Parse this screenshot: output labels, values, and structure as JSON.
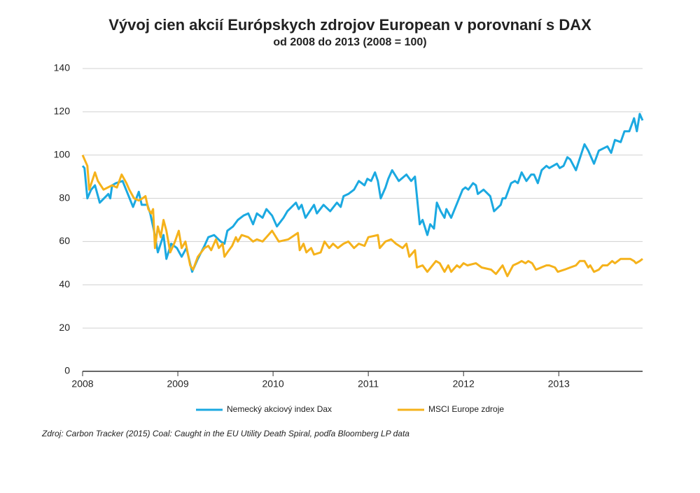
{
  "chart_data": {
    "type": "line",
    "title": "Vývoj cien akcií Európskych zdrojov European v porovnaní s DAX",
    "subtitle": "od 2008 do 2013 (2008 = 100)",
    "source": "Zdroj: Carbon Tracker (2015) Coal: Caught in the EU Utility Death Spiral, podľa Bloomberg LP data",
    "xlim": [
      2008,
      2013.88
    ],
    "xticks": [
      2008,
      2009,
      2010,
      2011,
      2012,
      2013
    ],
    "ylim": [
      0,
      140
    ],
    "yticks": [
      0,
      20,
      40,
      60,
      80,
      100,
      120,
      140
    ],
    "grid": true,
    "series": [
      {
        "name": "Nemecký akciový index Dax",
        "color": "#1ba9e1",
        "x": [
          2008.0,
          2008.02,
          2008.05,
          2008.09,
          2008.13,
          2008.18,
          2008.27,
          2008.29,
          2008.31,
          2008.35,
          2008.42,
          2008.53,
          2008.59,
          2008.62,
          2008.68,
          2008.71,
          2008.75,
          2008.79,
          2008.85,
          2008.88,
          2008.93,
          2008.99,
          2009.04,
          2009.09,
          2009.15,
          2009.21,
          2009.28,
          2009.32,
          2009.38,
          2009.45,
          2009.49,
          2009.52,
          2009.58,
          2009.63,
          2009.69,
          2009.74,
          2009.79,
          2009.83,
          2009.89,
          2009.93,
          2009.99,
          2010.04,
          2010.11,
          2010.15,
          2010.24,
          2010.27,
          2010.3,
          2010.34,
          2010.43,
          2010.46,
          2010.53,
          2010.6,
          2010.67,
          2010.71,
          2010.74,
          2010.79,
          2010.85,
          2010.9,
          2010.96,
          2010.99,
          2011.03,
          2011.07,
          2011.1,
          2011.13,
          2011.18,
          2011.21,
          2011.25,
          2011.32,
          2011.4,
          2011.45,
          2011.49,
          2011.54,
          2011.57,
          2011.62,
          2011.65,
          2011.69,
          2011.72,
          2011.76,
          2011.8,
          2011.82,
          2011.87,
          2011.99,
          2012.02,
          2012.05,
          2012.1,
          2012.13,
          2012.15,
          2012.21,
          2012.28,
          2012.32,
          2012.39,
          2012.41,
          2012.44,
          2012.5,
          2012.54,
          2012.57,
          2012.61,
          2012.66,
          2012.71,
          2012.74,
          2012.78,
          2012.82,
          2012.87,
          2012.9,
          2012.98,
          2013.01,
          2013.05,
          2013.09,
          2013.12,
          2013.18,
          2013.24,
          2013.27,
          2013.31,
          2013.37,
          2013.42,
          2013.51,
          2013.55,
          2013.59,
          2013.65,
          2013.69,
          2013.74,
          2013.79,
          2013.82,
          2013.85,
          2013.88
        ],
        "values": [
          95,
          94,
          80,
          84,
          86,
          78,
          82,
          80,
          86,
          87,
          88,
          76,
          83,
          77,
          77,
          73,
          65,
          55,
          63,
          52,
          59,
          57,
          53,
          57,
          46,
          52,
          58,
          62,
          63,
          60,
          59,
          65,
          67,
          70,
          72,
          73,
          68,
          73,
          71,
          75,
          72,
          67,
          71,
          74,
          78,
          75,
          77,
          71,
          77,
          73,
          77,
          74,
          78,
          76,
          81,
          82,
          84,
          88,
          86,
          89,
          88,
          92,
          88,
          80,
          85,
          89,
          93,
          88,
          91,
          88,
          90,
          68,
          70,
          63,
          68,
          66,
          78,
          74,
          71,
          75,
          71,
          84,
          85,
          84,
          87,
          86,
          82,
          84,
          81,
          74,
          77,
          80,
          80,
          87,
          88,
          87,
          92,
          88,
          91,
          91,
          87,
          93,
          95,
          94,
          96,
          94,
          95,
          99,
          98,
          93,
          101,
          105,
          102,
          96,
          102,
          104,
          101,
          107,
          106,
          111,
          111,
          117,
          111,
          119,
          116
        ]
      },
      {
        "name": "MSCI Europe zdroje",
        "color": "#f5b21b",
        "x": [
          2008.0,
          2008.05,
          2008.07,
          2008.13,
          2008.16,
          2008.22,
          2008.31,
          2008.36,
          2008.41,
          2008.46,
          2008.49,
          2008.54,
          2008.59,
          2008.63,
          2008.66,
          2008.69,
          2008.72,
          2008.74,
          2008.76,
          2008.79,
          2008.82,
          2008.85,
          2008.88,
          2008.92,
          2008.97,
          2009.01,
          2009.04,
          2009.08,
          2009.13,
          2009.16,
          2009.21,
          2009.28,
          2009.32,
          2009.35,
          2009.4,
          2009.43,
          2009.47,
          2009.49,
          2009.52,
          2009.57,
          2009.61,
          2009.63,
          2009.67,
          2009.74,
          2009.79,
          2009.83,
          2009.89,
          2009.99,
          2010.06,
          2010.16,
          2010.26,
          2010.28,
          2010.32,
          2010.35,
          2010.4,
          2010.43,
          2010.5,
          2010.54,
          2010.59,
          2010.63,
          2010.68,
          2010.74,
          2010.79,
          2010.85,
          2010.9,
          2010.96,
          2011.0,
          2011.1,
          2011.12,
          2011.18,
          2011.24,
          2011.29,
          2011.36,
          2011.4,
          2011.43,
          2011.49,
          2011.51,
          2011.57,
          2011.62,
          2011.71,
          2011.75,
          2011.8,
          2011.84,
          2011.87,
          2011.93,
          2011.96,
          2012.0,
          2012.04,
          2012.13,
          2012.19,
          2012.29,
          2012.34,
          2012.41,
          2012.46,
          2012.52,
          2012.57,
          2012.61,
          2012.65,
          2012.68,
          2012.72,
          2012.76,
          2012.87,
          2012.9,
          2012.96,
          2012.99,
          2013.06,
          2013.12,
          2013.18,
          2013.22,
          2013.27,
          2013.31,
          2013.33,
          2013.37,
          2013.42,
          2013.46,
          2013.51,
          2013.56,
          2013.59,
          2013.65,
          2013.75,
          2013.79,
          2013.81,
          2013.85,
          2013.88
        ],
        "values": [
          100,
          95,
          84,
          92,
          88,
          84,
          86,
          85,
          91,
          87,
          84,
          80,
          79,
          80,
          81,
          75,
          73,
          75,
          57,
          67,
          62,
          70,
          65,
          55,
          60,
          65,
          57,
          60,
          49,
          47,
          53,
          57,
          58,
          56,
          61,
          57,
          59,
          53,
          55,
          58,
          62,
          60,
          63,
          62,
          60,
          61,
          60,
          65,
          60,
          61,
          64,
          56,
          59,
          55,
          57,
          54,
          55,
          60,
          57,
          59,
          57,
          59,
          60,
          57,
          59,
          58,
          62,
          63,
          57,
          60,
          61,
          59,
          57,
          59,
          53,
          56,
          48,
          49,
          46,
          51,
          50,
          46,
          49,
          46,
          49,
          48,
          50,
          49,
          50,
          48,
          47,
          45,
          49,
          44,
          49,
          50,
          51,
          50,
          51,
          50,
          47,
          49,
          49,
          48,
          46,
          47,
          48,
          49,
          51,
          51,
          48,
          49,
          46,
          47,
          49,
          49,
          51,
          50,
          52,
          52,
          51,
          50,
          51,
          52
        ]
      }
    ]
  }
}
